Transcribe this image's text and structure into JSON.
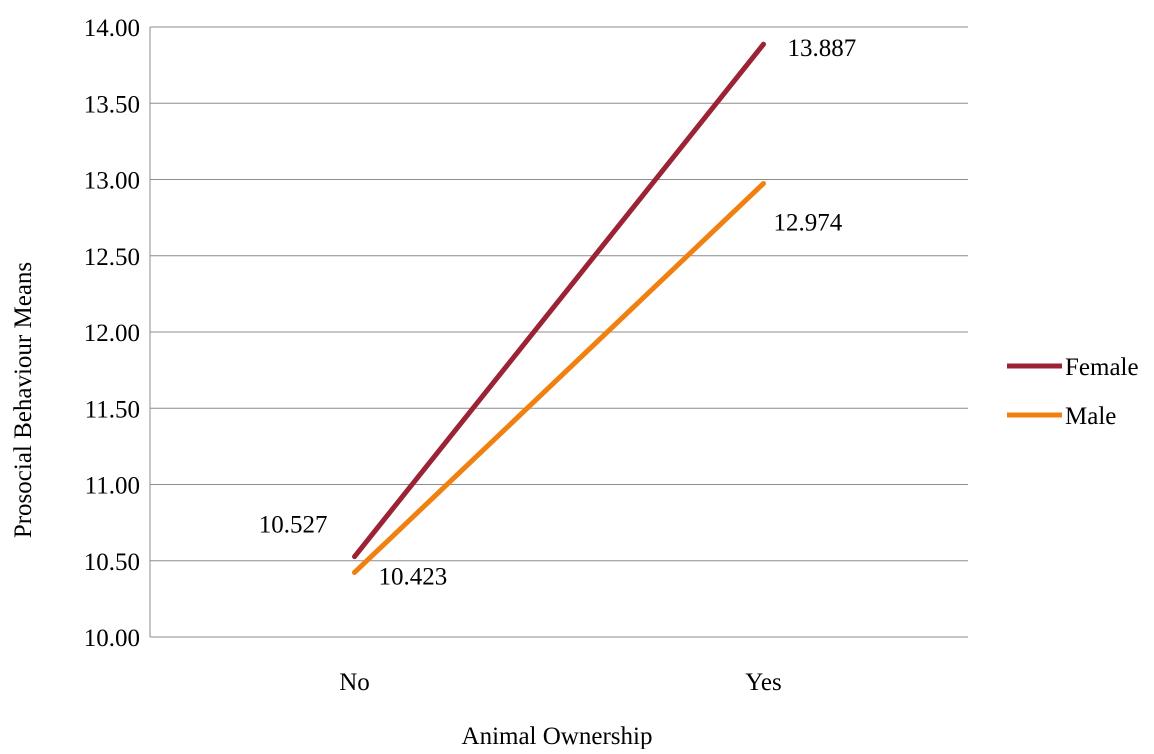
{
  "chart_data": {
    "type": "line",
    "title": "",
    "xlabel": "Animal Ownership",
    "ylabel": "Prosocial Behaviour Means",
    "categories": [
      "No",
      "Yes"
    ],
    "ylim": [
      10.0,
      14.0
    ],
    "yticks": [
      "10.00",
      "10.50",
      "11.00",
      "11.50",
      "12.00",
      "12.50",
      "13.00",
      "13.50",
      "14.00"
    ],
    "grid": true,
    "legend_position": "right",
    "series": [
      {
        "name": "Female",
        "color": "#9b2335",
        "values": [
          10.527,
          13.887
        ],
        "data_labels": [
          "10.527",
          "13.887"
        ]
      },
      {
        "name": "Male",
        "color": "#f0800f",
        "values": [
          10.423,
          12.974
        ],
        "data_labels": [
          "10.423",
          "12.974"
        ]
      }
    ]
  }
}
